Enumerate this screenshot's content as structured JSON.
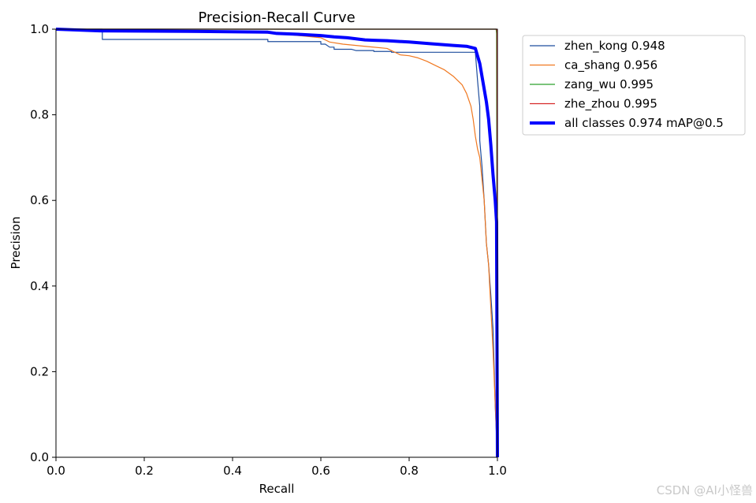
{
  "chart_data": {
    "type": "line",
    "title": "Precision-Recall Curve",
    "xlabel": "Recall",
    "ylabel": "Precision",
    "xlim": [
      0,
      1
    ],
    "ylim": [
      0,
      1
    ],
    "xticks": [
      "0.0",
      "0.2",
      "0.4",
      "0.6",
      "0.8",
      "1.0"
    ],
    "yticks": [
      "0.0",
      "0.2",
      "0.4",
      "0.6",
      "0.8",
      "1.0"
    ],
    "grid": false,
    "legend_position": "outside-top-right",
    "series": [
      {
        "name": "zhen_kong 0.948",
        "color": "#1f4e9e",
        "line_width": "thin",
        "x": [
          0,
          0.105,
          0.105,
          0.3,
          0.48,
          0.48,
          0.6,
          0.6,
          0.61,
          0.62,
          0.63,
          0.63,
          0.67,
          0.68,
          0.72,
          0.72,
          0.76,
          0.76,
          0.95,
          0.955,
          0.96,
          0.96,
          0.965,
          0.97,
          0.975,
          0.98,
          0.985,
          0.99,
          0.995,
          1.0
        ],
        "y": [
          1.0,
          1.0,
          0.976,
          0.976,
          0.976,
          0.971,
          0.971,
          0.965,
          0.965,
          0.958,
          0.958,
          0.953,
          0.953,
          0.95,
          0.95,
          0.948,
          0.948,
          0.946,
          0.946,
          0.88,
          0.82,
          0.74,
          0.68,
          0.6,
          0.5,
          0.45,
          0.38,
          0.3,
          0.12,
          0.0
        ]
      },
      {
        "name": "ca_shang 0.956",
        "color": "#f07820",
        "line_width": "thin",
        "x": [
          0,
          0.3,
          0.5,
          0.55,
          0.6,
          0.62,
          0.65,
          0.7,
          0.75,
          0.77,
          0.78,
          0.8,
          0.82,
          0.84,
          0.86,
          0.88,
          0.9,
          0.92,
          0.93,
          0.94,
          0.945,
          0.95,
          0.955,
          0.96,
          0.965,
          0.97,
          0.975,
          0.98,
          0.985,
          0.99,
          1.0
        ],
        "y": [
          1.0,
          0.997,
          0.99,
          0.985,
          0.98,
          0.97,
          0.965,
          0.96,
          0.955,
          0.945,
          0.94,
          0.938,
          0.933,
          0.925,
          0.915,
          0.905,
          0.89,
          0.87,
          0.85,
          0.82,
          0.79,
          0.75,
          0.72,
          0.7,
          0.65,
          0.6,
          0.5,
          0.45,
          0.35,
          0.25,
          0.0
        ]
      },
      {
        "name": "zang_wu 0.995",
        "color": "#2ca02c",
        "line_width": "thin",
        "x": [
          0,
          0.997,
          0.998,
          1.0
        ],
        "y": [
          1.0,
          1.0,
          0.99,
          0.0
        ]
      },
      {
        "name": "zhe_zhou 0.995",
        "color": "#d62728",
        "line_width": "thin",
        "x": [
          0,
          0.998,
          0.999,
          1.0
        ],
        "y": [
          1.0,
          1.0,
          0.995,
          0.0
        ]
      },
      {
        "name": "all classes 0.974 mAP@0.5",
        "color": "#0000ff",
        "line_width": "thick",
        "x": [
          0,
          0.1,
          0.3,
          0.48,
          0.5,
          0.55,
          0.6,
          0.63,
          0.66,
          0.7,
          0.72,
          0.75,
          0.8,
          0.85,
          0.9,
          0.93,
          0.95,
          0.96,
          0.965,
          0.97,
          0.975,
          0.98,
          0.985,
          0.99,
          0.995,
          0.998,
          1.0
        ],
        "y": [
          1.0,
          0.996,
          0.995,
          0.993,
          0.99,
          0.988,
          0.985,
          0.982,
          0.98,
          0.975,
          0.974,
          0.973,
          0.97,
          0.966,
          0.962,
          0.96,
          0.955,
          0.92,
          0.89,
          0.86,
          0.83,
          0.79,
          0.73,
          0.66,
          0.6,
          0.55,
          0.0
        ]
      }
    ]
  },
  "watermark": "CSDN @AI小怪兽"
}
